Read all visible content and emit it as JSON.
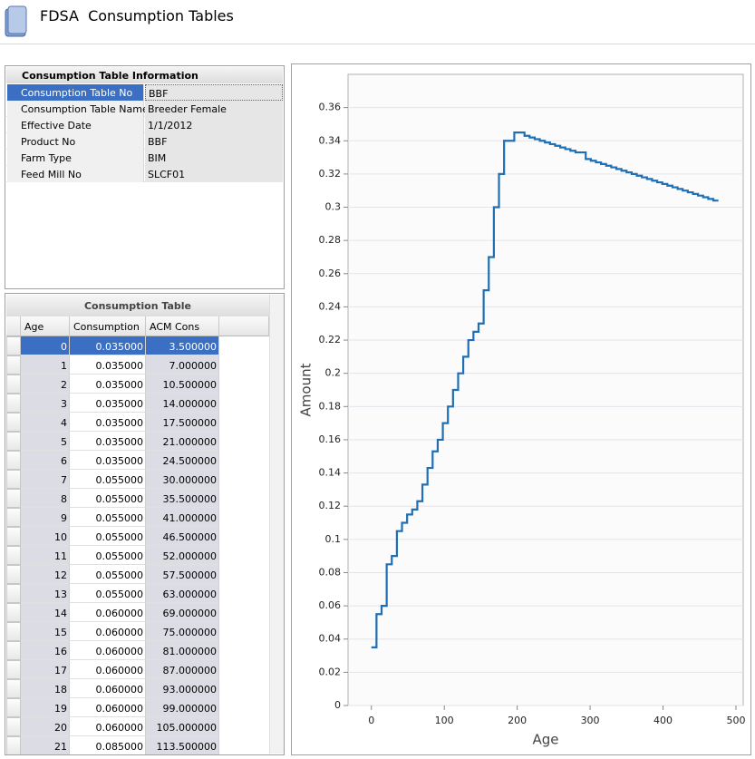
{
  "header": {
    "title": "FDSA  Consumption Tables"
  },
  "info": {
    "title": "Consumption Table Information",
    "rows": [
      [
        "Consumption Table No",
        "BBF"
      ],
      [
        "Consumption Table Name",
        "Breeder Female"
      ],
      [
        "Effective Date",
        "1/1/2012"
      ],
      [
        "Product No",
        "BBF"
      ],
      [
        "Farm Type",
        "BIM"
      ],
      [
        "Feed Mill No",
        "SLCF01"
      ]
    ]
  },
  "table": {
    "title": "Consumption Table",
    "columns": [
      "Age",
      "Consumption",
      "ACM Cons"
    ],
    "rows": [
      [
        "0",
        "0.035000",
        "3.500000"
      ],
      [
        "1",
        "0.035000",
        "7.000000"
      ],
      [
        "2",
        "0.035000",
        "10.500000"
      ],
      [
        "3",
        "0.035000",
        "14.000000"
      ],
      [
        "4",
        "0.035000",
        "17.500000"
      ],
      [
        "5",
        "0.035000",
        "21.000000"
      ],
      [
        "6",
        "0.035000",
        "24.500000"
      ],
      [
        "7",
        "0.055000",
        "30.000000"
      ],
      [
        "8",
        "0.055000",
        "35.500000"
      ],
      [
        "9",
        "0.055000",
        "41.000000"
      ],
      [
        "10",
        "0.055000",
        "46.500000"
      ],
      [
        "11",
        "0.055000",
        "52.000000"
      ],
      [
        "12",
        "0.055000",
        "57.500000"
      ],
      [
        "13",
        "0.055000",
        "63.000000"
      ],
      [
        "14",
        "0.060000",
        "69.000000"
      ],
      [
        "15",
        "0.060000",
        "75.000000"
      ],
      [
        "16",
        "0.060000",
        "81.000000"
      ],
      [
        "17",
        "0.060000",
        "87.000000"
      ],
      [
        "18",
        "0.060000",
        "93.000000"
      ],
      [
        "19",
        "0.060000",
        "99.000000"
      ],
      [
        "20",
        "0.060000",
        "105.000000"
      ],
      [
        "21",
        "0.085000",
        "113.500000"
      ]
    ]
  },
  "chart_data": {
    "type": "step",
    "xlabel": "Age",
    "ylabel": "Amount",
    "x": [
      0,
      7,
      14,
      21,
      28,
      35,
      42,
      49,
      56,
      63,
      70,
      77,
      84,
      91,
      98,
      105,
      112,
      119,
      126,
      133,
      140,
      147,
      154,
      161,
      168,
      175,
      182,
      189,
      196,
      203,
      210,
      217,
      224,
      231,
      238,
      245,
      252,
      259,
      266,
      273,
      280,
      287,
      294,
      301,
      308,
      315,
      322,
      329,
      336,
      343,
      350,
      357,
      364,
      371,
      378,
      385,
      392,
      399,
      406,
      413,
      420,
      427,
      434,
      441,
      448,
      455,
      462,
      469,
      476
    ],
    "values": [
      0.035,
      0.055,
      0.06,
      0.085,
      0.09,
      0.105,
      0.11,
      0.115,
      0.118,
      0.123,
      0.133,
      0.143,
      0.153,
      0.16,
      0.17,
      0.18,
      0.19,
      0.2,
      0.21,
      0.22,
      0.225,
      0.23,
      0.25,
      0.27,
      0.3,
      0.32,
      0.34,
      0.34,
      0.345,
      0.345,
      0.343,
      0.342,
      0.341,
      0.34,
      0.339,
      0.338,
      0.337,
      0.336,
      0.335,
      0.334,
      0.333,
      0.333,
      0.329,
      0.328,
      0.327,
      0.326,
      0.325,
      0.324,
      0.323,
      0.322,
      0.321,
      0.32,
      0.319,
      0.318,
      0.317,
      0.316,
      0.315,
      0.314,
      0.313,
      0.312,
      0.311,
      0.31,
      0.309,
      0.308,
      0.307,
      0.306,
      0.305,
      0.304,
      0.304
    ],
    "color": "#1f6fb4",
    "xlim": [
      -32,
      510
    ],
    "ylim": [
      0,
      0.38
    ],
    "xticks": [
      0,
      100,
      200,
      300,
      400,
      500
    ],
    "yticks": [
      0,
      0.02,
      0.04,
      0.06,
      0.08,
      0.1,
      0.12,
      0.14,
      0.16,
      0.18,
      0.2,
      0.22,
      0.24,
      0.26,
      0.28,
      0.3,
      0.32,
      0.34,
      0.36
    ],
    "grid": true
  }
}
